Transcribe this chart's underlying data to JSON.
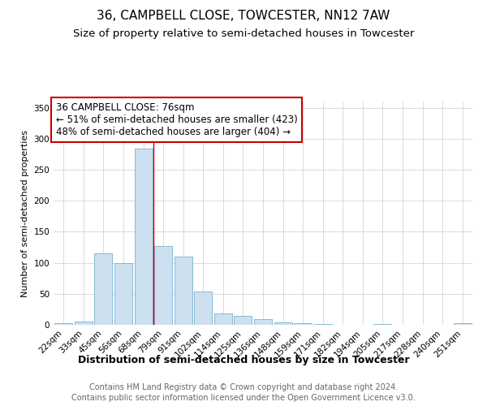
{
  "title1": "36, CAMPBELL CLOSE, TOWCESTER, NN12 7AW",
  "title2": "Size of property relative to semi-detached houses in Towcester",
  "xlabel": "Distribution of semi-detached houses by size in Towcester",
  "ylabel": "Number of semi-detached properties",
  "categories": [
    "22sqm",
    "33sqm",
    "45sqm",
    "56sqm",
    "68sqm",
    "79sqm",
    "91sqm",
    "102sqm",
    "114sqm",
    "125sqm",
    "136sqm",
    "148sqm",
    "159sqm",
    "171sqm",
    "182sqm",
    "194sqm",
    "205sqm",
    "217sqm",
    "228sqm",
    "240sqm",
    "251sqm"
  ],
  "values": [
    2,
    5,
    115,
    100,
    284,
    127,
    110,
    54,
    18,
    15,
    9,
    4,
    3,
    1,
    0,
    0,
    1,
    0,
    0,
    0,
    2
  ],
  "bar_color": "#cce0f0",
  "bar_edge_color": "#7ab0d0",
  "property_bar_index": 4,
  "annotation_title": "36 CAMPBELL CLOSE: 76sqm",
  "annotation_line1": "← 51% of semi-detached houses are smaller (423)",
  "annotation_line2": "48% of semi-detached houses are larger (404) →",
  "annotation_box_color": "#ffffff",
  "annotation_box_edge_color": "#cc0000",
  "property_line_color": "#cc0000",
  "property_line_x": 4.5,
  "ylim": [
    0,
    360
  ],
  "yticks": [
    0,
    50,
    100,
    150,
    200,
    250,
    300,
    350
  ],
  "footer1": "Contains HM Land Registry data © Crown copyright and database right 2024.",
  "footer2": "Contains public sector information licensed under the Open Government Licence v3.0.",
  "title1_fontsize": 11,
  "title2_fontsize": 9.5,
  "xlabel_fontsize": 9,
  "ylabel_fontsize": 8,
  "tick_fontsize": 7.5,
  "annotation_fontsize": 8.5,
  "footer_fontsize": 7,
  "background_color": "#ffffff",
  "grid_color": "#cccccc"
}
